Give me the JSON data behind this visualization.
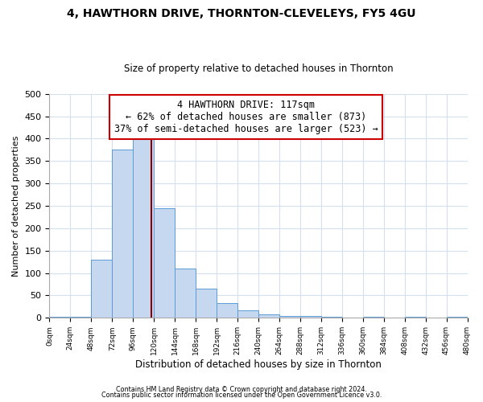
{
  "title": "4, HAWTHORN DRIVE, THORNTON-CLEVELEYS, FY5 4GU",
  "subtitle": "Size of property relative to detached houses in Thornton",
  "xlabel": "Distribution of detached houses by size in Thornton",
  "ylabel": "Number of detached properties",
  "footnote1": "Contains HM Land Registry data © Crown copyright and database right 2024.",
  "footnote2": "Contains public sector information licensed under the Open Government Licence v3.0.",
  "bar_color": "#c5d8f0",
  "bar_edge_color": "#5b9bd5",
  "bin_edges": [
    0,
    24,
    48,
    72,
    96,
    120,
    144,
    168,
    192,
    216,
    240,
    264,
    288,
    312,
    336,
    360,
    384,
    408,
    432,
    456,
    480
  ],
  "bar_heights": [
    2,
    2,
    130,
    375,
    415,
    245,
    110,
    65,
    33,
    17,
    7,
    5,
    5,
    2,
    0,
    2,
    0,
    2,
    0,
    2
  ],
  "vline_x": 117,
  "vline_color": "#8b0000",
  "ylim": [
    0,
    500
  ],
  "yticks": [
    0,
    50,
    100,
    150,
    200,
    250,
    300,
    350,
    400,
    450,
    500
  ],
  "annotation_line0": "4 HAWTHORN DRIVE: 117sqm",
  "annotation_line1": "← 62% of detached houses are smaller (873)",
  "annotation_line2": "37% of semi-detached houses are larger (523) →",
  "annotation_box_color": "#ffffff",
  "annotation_box_edge": "#cc0000",
  "background_color": "#ffffff",
  "grid_color": "#d4dff0"
}
